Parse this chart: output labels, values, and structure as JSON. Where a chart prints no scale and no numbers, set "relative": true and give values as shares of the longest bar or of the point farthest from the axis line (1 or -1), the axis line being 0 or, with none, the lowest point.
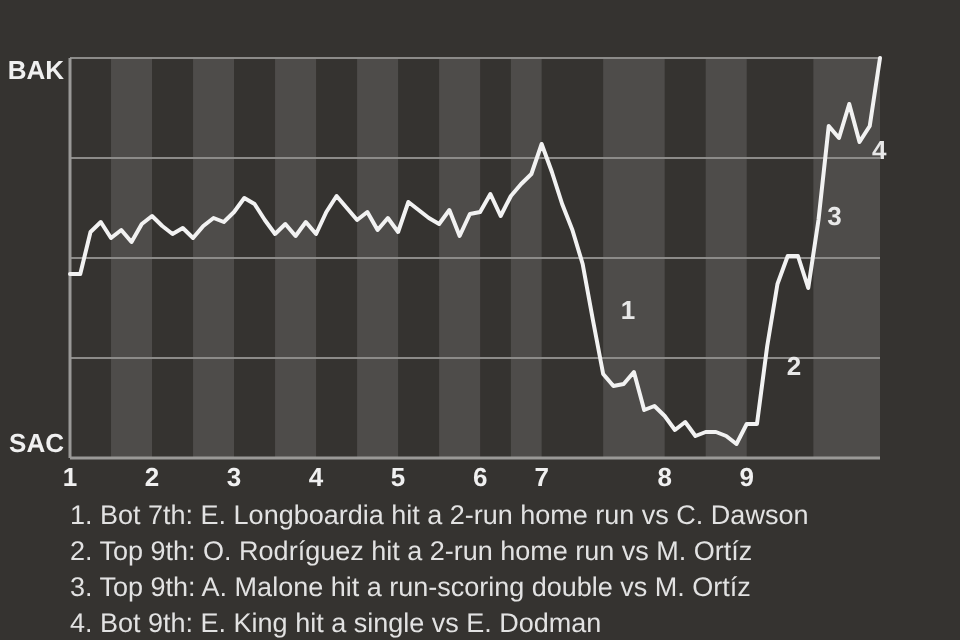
{
  "chart_data": {
    "type": "line",
    "categories": [
      "1",
      null,
      null,
      null,
      null,
      null,
      null,
      null,
      "2",
      null,
      null,
      null,
      null,
      null,
      null,
      null,
      "3",
      null,
      null,
      null,
      null,
      null,
      null,
      null,
      "4",
      null,
      null,
      null,
      null,
      null,
      null,
      null,
      "5",
      null,
      null,
      null,
      null,
      null,
      null,
      null,
      "6",
      null,
      null,
      null,
      null,
      null,
      "7",
      null,
      null,
      null,
      null,
      null,
      null,
      null,
      null,
      null,
      null,
      null,
      "8",
      null,
      null,
      null,
      null,
      null,
      null,
      null,
      "9",
      null,
      null,
      null,
      null,
      null,
      null,
      null,
      null,
      null,
      null,
      null,
      null,
      null
    ],
    "series": [
      {
        "color": "#f2f2f2",
        "values": [
          0.46,
          0.46,
          0.565,
          0.59,
          0.55,
          0.57,
          0.54,
          0.585,
          0.605,
          0.58,
          0.56,
          0.575,
          0.55,
          0.58,
          0.6,
          0.59,
          0.615,
          0.65,
          0.635,
          0.595,
          0.56,
          0.585,
          0.555,
          0.59,
          0.56,
          0.615,
          0.655,
          0.625,
          0.595,
          0.615,
          0.57,
          0.6,
          0.565,
          0.64,
          0.62,
          0.6,
          0.585,
          0.62,
          0.555,
          0.61,
          0.615,
          0.66,
          0.605,
          0.655,
          0.685,
          0.71,
          0.785,
          0.715,
          0.635,
          0.57,
          0.485,
          0.345,
          0.21,
          0.18,
          0.185,
          0.215,
          0.12,
          0.13,
          0.105,
          0.07,
          0.09,
          0.055,
          0.065,
          0.065,
          0.055,
          0.035,
          0.085,
          0.085,
          0.28,
          0.435,
          0.505,
          0.505,
          0.425,
          0.595,
          0.83,
          0.8,
          0.885,
          0.79,
          0.83,
          1.0
        ]
      }
    ],
    "relative": true,
    "grid": "y",
    "marker": "none",
    "line_style": "solid",
    "annotations": [
      "BAK",
      "SAC",
      "1",
      "2",
      "3",
      "4",
      "1. Bot 7th: E. Longboardia hit a 2-run home run vs C. Dawson",
      "2. Top 9th: O. Rodríguez hit a 2-run home run vs M. Ortíz",
      "3. Top 9th: A. Malone hit a run-scoring double vs M. Ortíz",
      "4. Bot 9th: E. King hit a single vs E. Dodman"
    ]
  }
}
